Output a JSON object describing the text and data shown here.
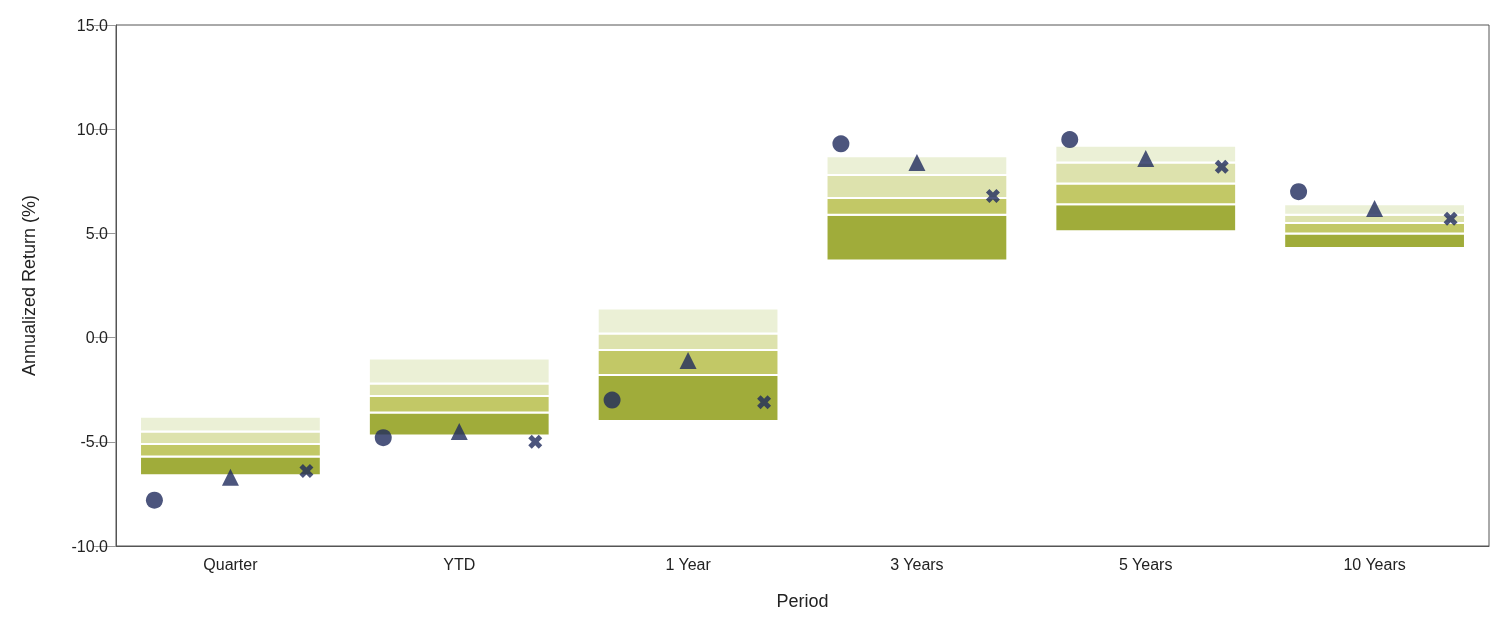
{
  "chart_data": {
    "type": "bar",
    "xlabel": "Period",
    "ylabel": "Annualized Return (%)",
    "categories": [
      "Quarter",
      "YTD",
      "1 Year",
      "3 Years",
      "5 Years",
      "10 Years"
    ],
    "series": [
      {
        "color": "#a0ac3a",
        "base": [
          -6.6,
          -4.7,
          -4.0,
          3.7,
          5.1,
          4.3
        ],
        "values": [
          0.9,
          1.1,
          2.2,
          2.2,
          1.3,
          0.7
        ]
      },
      {
        "color": "#c2c866",
        "base": [
          -5.7,
          -3.6,
          -1.8,
          5.9,
          6.4,
          5.0
        ],
        "values": [
          0.6,
          0.8,
          1.2,
          0.8,
          1.0,
          0.5
        ]
      },
      {
        "color": "#dde2ad",
        "base": [
          -5.1,
          -2.8,
          -0.6,
          6.7,
          7.4,
          5.5
        ],
        "values": [
          0.6,
          0.6,
          0.8,
          1.1,
          1.0,
          0.4
        ]
      },
      {
        "color": "#ebf0d6",
        "base": [
          -4.5,
          -2.2,
          0.2,
          7.8,
          8.4,
          5.9
        ],
        "values": [
          0.7,
          1.2,
          1.2,
          0.9,
          0.8,
          0.5
        ]
      },
      {
        "type": "scatter",
        "marker": "circle",
        "color": "#1f2a5c",
        "x": [
          "Quarter",
          "YTD",
          "1 Year",
          "3 Years",
          "5 Years",
          "10 Years"
        ],
        "values": [
          -7.8,
          -4.8,
          -3.0,
          9.3,
          9.5,
          7.0
        ]
      },
      {
        "type": "scatter",
        "marker": "triangle",
        "color": "#1f2a5c",
        "x": [
          "Quarter",
          "YTD",
          "1 Year",
          "3 Years",
          "5 Years",
          "10 Years"
        ],
        "values": [
          -6.7,
          -4.5,
          -1.1,
          8.4,
          8.6,
          6.2
        ]
      },
      {
        "type": "scatter",
        "marker": "cross",
        "color": "#1f2a5c",
        "x": [
          "Quarter",
          "YTD",
          "1 Year",
          "3 Years",
          "5 Years",
          "10 Years"
        ],
        "values": [
          -6.4,
          -5.0,
          -3.1,
          6.8,
          8.2,
          5.7
        ]
      }
    ],
    "ylim": [
      -10,
      15
    ],
    "yticks": [
      {
        "value": -10,
        "label": "-10.0"
      },
      {
        "value": -5,
        "label": "-5.0"
      },
      {
        "value": 0,
        "label": "0.0"
      },
      {
        "value": 5,
        "label": "5.0"
      },
      {
        "value": 10,
        "label": "10.0"
      },
      {
        "value": 15,
        "label": "15.0"
      }
    ]
  }
}
